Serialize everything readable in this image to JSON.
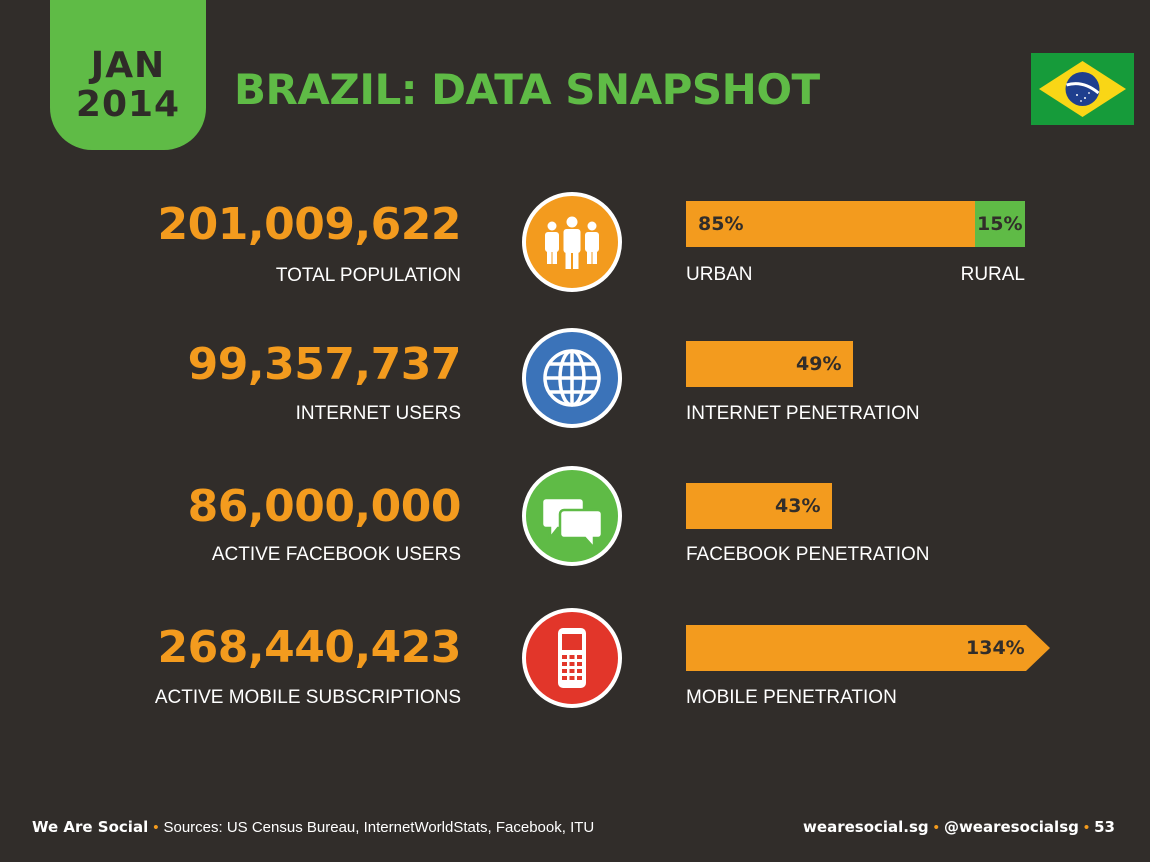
{
  "header": {
    "month": "JAN",
    "year": "2014",
    "title": "BRAZIL: DATA SNAPSHOT"
  },
  "colors": {
    "background": "#312d2a",
    "accent_green": "#5fbb46",
    "accent_orange": "#f39b1e",
    "icon_blue": "#3b73b9",
    "icon_red": "#e2362a"
  },
  "stats": [
    {
      "value": "201,009,622",
      "label": "TOTAL POPULATION",
      "icon": "people-icon"
    },
    {
      "value": "99,357,737",
      "label": "INTERNET USERS",
      "icon": "globe-icon"
    },
    {
      "value": "86,000,000",
      "label": "ACTIVE FACEBOOK USERS",
      "icon": "chat-bubbles-icon"
    },
    {
      "value": "268,440,423",
      "label": "ACTIVE MOBILE SUBSCRIPTIONS",
      "icon": "mobile-phone-icon"
    }
  ],
  "bars": {
    "population": {
      "urban_pct": 85,
      "rural_pct": 15,
      "urban_text": "85%",
      "rural_text": "15%",
      "urban_label": "URBAN",
      "rural_label": "RURAL"
    },
    "internet": {
      "pct": 49,
      "text": "49%",
      "label": "INTERNET PENETRATION"
    },
    "facebook": {
      "pct": 43,
      "text": "43%",
      "label": "FACEBOOK PENETRATION"
    },
    "mobile": {
      "pct": 134,
      "text": "134%",
      "label": "MOBILE PENETRATION"
    }
  },
  "footer": {
    "brand": "We Are Social",
    "sources": "Sources: US Census Bureau, InternetWorldStats, Facebook, ITU",
    "website": "wearesocial.sg",
    "handle": "@wearesocialsg",
    "page": "53"
  }
}
